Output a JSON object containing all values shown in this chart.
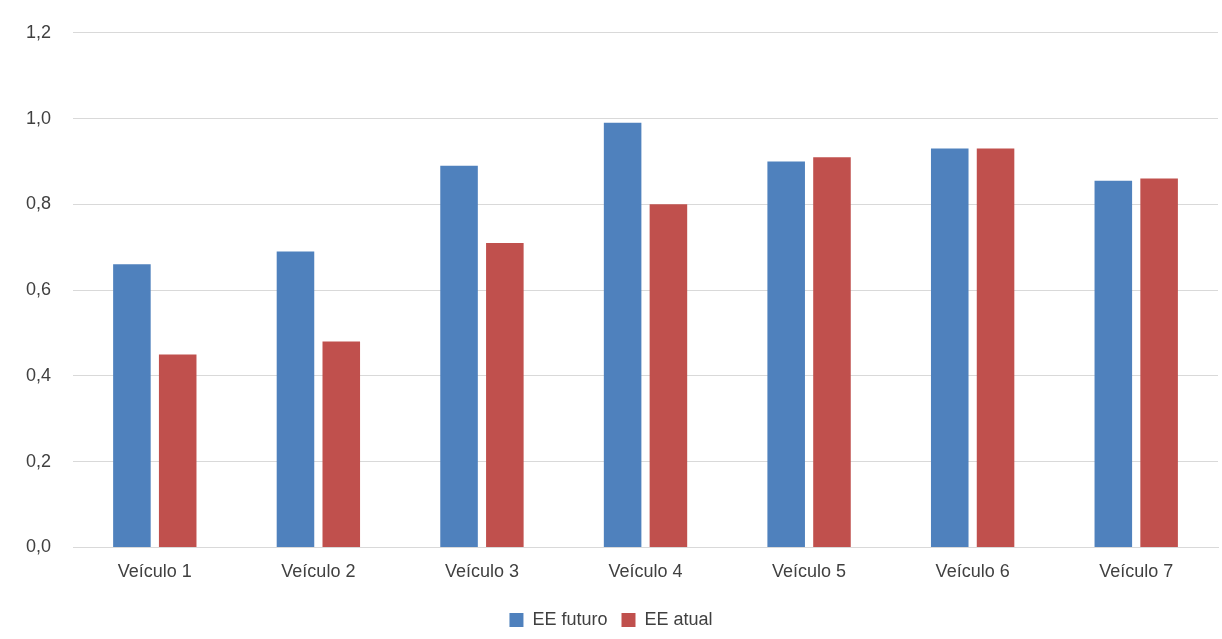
{
  "chart_data": {
    "type": "bar",
    "categories": [
      "Veículo 1",
      "Veículo 2",
      "Veículo 3",
      "Veículo 4",
      "Veículo 5",
      "Veículo 6",
      "Veículo 7"
    ],
    "series": [
      {
        "name": "EE futuro",
        "color": "#4f81bd",
        "values": [
          0.66,
          0.69,
          0.89,
          0.99,
          0.9,
          0.93,
          0.855
        ]
      },
      {
        "name": "EE atual",
        "color": "#c0504d",
        "values": [
          0.45,
          0.48,
          0.71,
          0.8,
          0.91,
          0.93,
          0.86
        ]
      }
    ],
    "ylim": [
      0,
      1.2
    ],
    "yticks": [
      {
        "value": 0,
        "label": "0,0"
      },
      {
        "value": 0.2,
        "label": "0,2"
      },
      {
        "value": 0.4,
        "label": "0,4"
      },
      {
        "value": 0.6,
        "label": "0,6"
      },
      {
        "value": 0.8,
        "label": "0,8"
      },
      {
        "value": 1,
        "label": "1,0"
      },
      {
        "value": 1.2,
        "label": "1,2"
      }
    ],
    "grid": "y",
    "legend": "bottom"
  }
}
